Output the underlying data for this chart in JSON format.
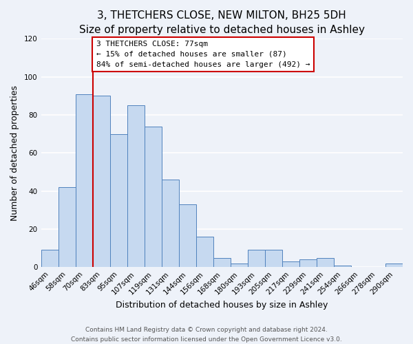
{
  "title": "3, THETCHERS CLOSE, NEW MILTON, BH25 5DH",
  "subtitle": "Size of property relative to detached houses in Ashley",
  "xlabel": "Distribution of detached houses by size in Ashley",
  "ylabel": "Number of detached properties",
  "bar_labels": [
    "46sqm",
    "58sqm",
    "70sqm",
    "83sqm",
    "95sqm",
    "107sqm",
    "119sqm",
    "131sqm",
    "144sqm",
    "156sqm",
    "168sqm",
    "180sqm",
    "193sqm",
    "205sqm",
    "217sqm",
    "229sqm",
    "241sqm",
    "254sqm",
    "266sqm",
    "278sqm",
    "290sqm"
  ],
  "bar_heights": [
    9,
    42,
    91,
    90,
    70,
    85,
    74,
    46,
    33,
    16,
    5,
    2,
    9,
    9,
    3,
    4,
    5,
    1,
    0,
    0,
    2
  ],
  "bar_color": "#c6d9f0",
  "bar_edge_color": "#4f81bd",
  "ylim": [
    0,
    120
  ],
  "yticks": [
    0,
    20,
    40,
    60,
    80,
    100,
    120
  ],
  "vline_color": "#cc0000",
  "annotation_title": "3 THETCHERS CLOSE: 77sqm",
  "annotation_line1": "← 15% of detached houses are smaller (87)",
  "annotation_line2": "84% of semi-detached houses are larger (492) →",
  "annotation_box_facecolor": "#ffffff",
  "annotation_box_edgecolor": "#cc0000",
  "footer_line1": "Contains HM Land Registry data © Crown copyright and database right 2024.",
  "footer_line2": "Contains public sector information licensed under the Open Government Licence v3.0.",
  "background_color": "#eef2f9",
  "plot_background": "#eef2f9",
  "grid_color": "#ffffff",
  "title_fontsize": 11,
  "axis_label_fontsize": 9,
  "tick_fontsize": 7.5,
  "annotation_fontsize": 8,
  "footer_fontsize": 6.5
}
